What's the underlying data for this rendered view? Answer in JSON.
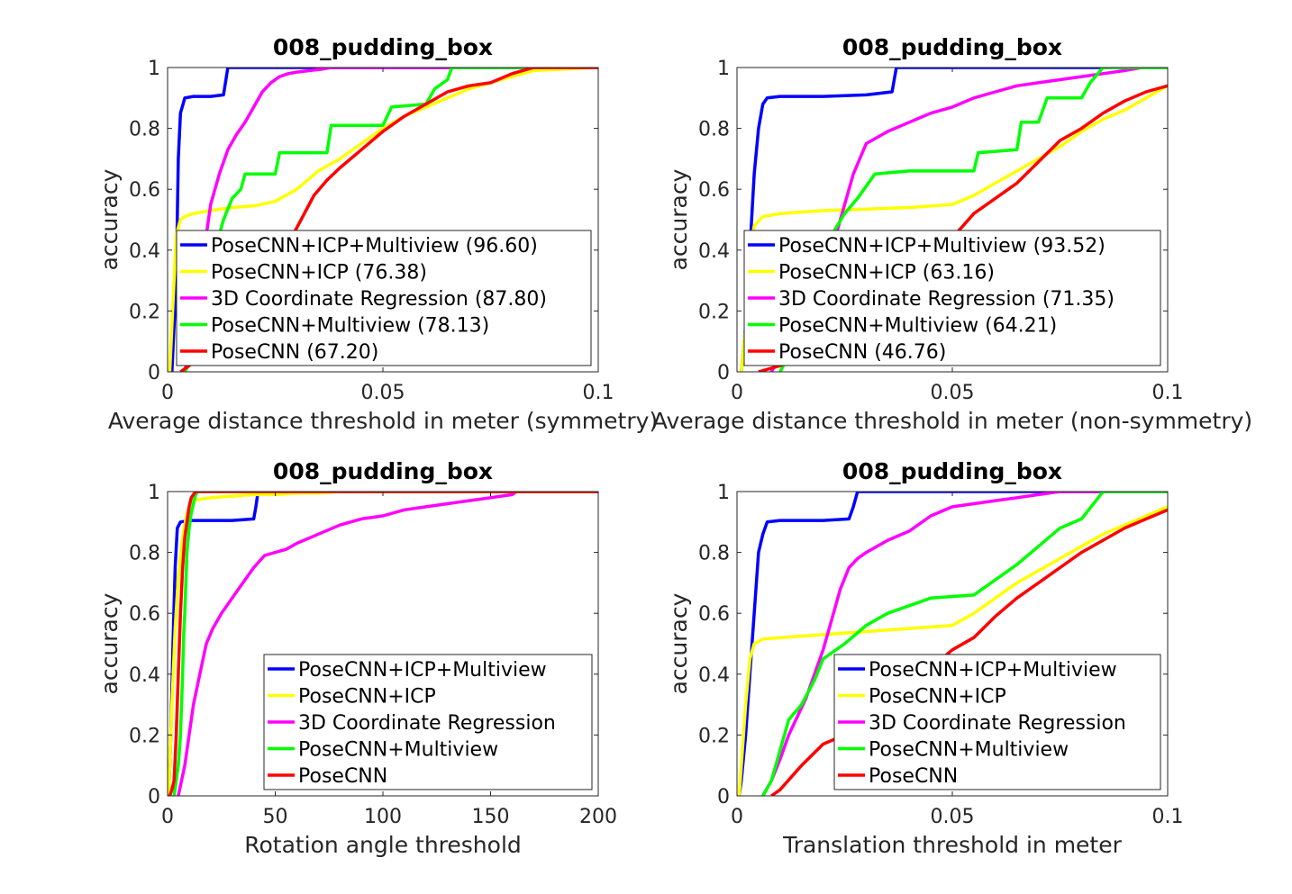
{
  "colors": {
    "PoseCNN+ICP+Multiview": "#0000ff",
    "PoseCNN+ICP": "#ffff00",
    "3D Coordinate Regression": "#ff00ff",
    "PoseCNN+Multiview": "#00ff00",
    "PoseCNN": "#ff0000"
  },
  "chart_data": [
    {
      "type": "line",
      "title": "008_pudding_box",
      "xlabel": "Average distance threshold in meter (symmetry)",
      "ylabel": "accuracy",
      "xlim": [
        0,
        0.1
      ],
      "ylim": [
        0,
        1
      ],
      "xticks": [
        "0",
        "0.05",
        "0.1"
      ],
      "yticks": [
        "0",
        "0.2",
        "0.4",
        "0.6",
        "0.8",
        "1"
      ],
      "grid": false,
      "legend_position": "bottom",
      "series": [
        {
          "name": "PoseCNN+ICP+Multiview (96.60)",
          "key": "PoseCNN+ICP+Multiview",
          "x": [
            0.001,
            0.002,
            0.0025,
            0.003,
            0.004,
            0.006,
            0.01,
            0.013,
            0.014,
            0.1
          ],
          "y": [
            0.0,
            0.3,
            0.7,
            0.85,
            0.9,
            0.905,
            0.905,
            0.91,
            1.0,
            1.0
          ]
        },
        {
          "name": "PoseCNN+ICP (76.38)",
          "key": "PoseCNN+ICP",
          "x": [
            0.0005,
            0.001,
            0.002,
            0.003,
            0.004,
            0.006,
            0.01,
            0.015,
            0.02,
            0.025,
            0.03,
            0.035,
            0.04,
            0.045,
            0.05,
            0.055,
            0.06,
            0.065,
            0.07,
            0.075,
            0.08,
            0.085,
            0.1
          ],
          "y": [
            0.0,
            0.15,
            0.45,
            0.5,
            0.51,
            0.52,
            0.53,
            0.54,
            0.545,
            0.56,
            0.6,
            0.66,
            0.7,
            0.75,
            0.8,
            0.84,
            0.87,
            0.9,
            0.93,
            0.95,
            0.97,
            0.99,
            1.0
          ]
        },
        {
          "name": "3D Coordinate Regression (87.80)",
          "key": "3D Coordinate Regression",
          "x": [
            0.004,
            0.006,
            0.008,
            0.01,
            0.012,
            0.014,
            0.016,
            0.018,
            0.02,
            0.022,
            0.024,
            0.026,
            0.028,
            0.03,
            0.033,
            0.036,
            0.038,
            0.1
          ],
          "y": [
            0.0,
            0.15,
            0.35,
            0.55,
            0.65,
            0.73,
            0.78,
            0.82,
            0.87,
            0.92,
            0.95,
            0.97,
            0.98,
            0.985,
            0.99,
            0.995,
            1.0,
            1.0
          ]
        },
        {
          "name": "PoseCNN+Multiview (78.13)",
          "key": "PoseCNN+Multiview",
          "x": [
            0.004,
            0.006,
            0.008,
            0.011,
            0.013,
            0.015,
            0.017,
            0.018,
            0.025,
            0.026,
            0.037,
            0.038,
            0.05,
            0.052,
            0.06,
            0.062,
            0.065,
            0.066,
            0.1
          ],
          "y": [
            0.0,
            0.05,
            0.2,
            0.4,
            0.5,
            0.57,
            0.6,
            0.65,
            0.65,
            0.72,
            0.72,
            0.81,
            0.81,
            0.87,
            0.88,
            0.93,
            0.96,
            1.0,
            1.0
          ]
        },
        {
          "name": "PoseCNN (67.20)",
          "key": "PoseCNN",
          "x": [
            0.003,
            0.005,
            0.008,
            0.012,
            0.016,
            0.02,
            0.024,
            0.028,
            0.031,
            0.034,
            0.037,
            0.04,
            0.045,
            0.05,
            0.055,
            0.06,
            0.065,
            0.07,
            0.075,
            0.08,
            0.085,
            0.1
          ],
          "y": [
            0.0,
            0.02,
            0.06,
            0.12,
            0.2,
            0.28,
            0.35,
            0.42,
            0.5,
            0.58,
            0.63,
            0.67,
            0.73,
            0.79,
            0.84,
            0.88,
            0.92,
            0.94,
            0.95,
            0.98,
            1.0,
            1.0
          ]
        }
      ]
    },
    {
      "type": "line",
      "title": "008_pudding_box",
      "xlabel": "Average distance threshold in meter (non-symmetry)",
      "ylabel": "accuracy",
      "xlim": [
        0,
        0.1
      ],
      "ylim": [
        0,
        1
      ],
      "xticks": [
        "0",
        "0.05",
        "0.1"
      ],
      "yticks": [
        "0",
        "0.2",
        "0.4",
        "0.6",
        "0.8",
        "1"
      ],
      "grid": false,
      "legend_position": "bottom",
      "series": [
        {
          "name": "PoseCNN+ICP+Multiview (93.52)",
          "key": "PoseCNN+ICP+Multiview",
          "x": [
            0.001,
            0.002,
            0.003,
            0.004,
            0.005,
            0.006,
            0.007,
            0.01,
            0.02,
            0.03,
            0.036,
            0.037,
            0.1
          ],
          "y": [
            0.0,
            0.15,
            0.4,
            0.65,
            0.8,
            0.88,
            0.9,
            0.905,
            0.905,
            0.91,
            0.92,
            1.0,
            1.0
          ]
        },
        {
          "name": "PoseCNN+ICP (63.16)",
          "key": "PoseCNN+ICP",
          "x": [
            0.001,
            0.002,
            0.003,
            0.004,
            0.006,
            0.01,
            0.02,
            0.03,
            0.04,
            0.05,
            0.055,
            0.06,
            0.065,
            0.07,
            0.075,
            0.08,
            0.085,
            0.09,
            0.095,
            0.1
          ],
          "y": [
            0.0,
            0.15,
            0.4,
            0.48,
            0.51,
            0.52,
            0.53,
            0.535,
            0.54,
            0.55,
            0.58,
            0.62,
            0.66,
            0.7,
            0.74,
            0.79,
            0.83,
            0.86,
            0.9,
            0.94
          ]
        },
        {
          "name": "3D Coordinate Regression (71.35)",
          "key": "3D Coordinate Regression",
          "x": [
            0.008,
            0.012,
            0.016,
            0.02,
            0.023,
            0.025,
            0.027,
            0.03,
            0.035,
            0.04,
            0.045,
            0.05,
            0.055,
            0.06,
            0.065,
            0.07,
            0.075,
            0.08,
            0.085,
            0.09,
            0.094,
            0.1
          ],
          "y": [
            0.0,
            0.1,
            0.22,
            0.35,
            0.45,
            0.55,
            0.65,
            0.75,
            0.79,
            0.82,
            0.85,
            0.87,
            0.9,
            0.92,
            0.94,
            0.95,
            0.96,
            0.97,
            0.98,
            0.99,
            1.0,
            1.0
          ]
        },
        {
          "name": "PoseCNN+Multiview (64.21)",
          "key": "PoseCNN+Multiview",
          "x": [
            0.01,
            0.013,
            0.016,
            0.019,
            0.022,
            0.025,
            0.028,
            0.032,
            0.04,
            0.055,
            0.056,
            0.065,
            0.066,
            0.07,
            0.072,
            0.08,
            0.082,
            0.085,
            0.1
          ],
          "y": [
            0.0,
            0.08,
            0.2,
            0.35,
            0.45,
            0.52,
            0.57,
            0.65,
            0.66,
            0.66,
            0.72,
            0.73,
            0.82,
            0.82,
            0.9,
            0.9,
            0.95,
            1.0,
            1.0
          ]
        },
        {
          "name": "PoseCNN (46.76)",
          "key": "PoseCNN",
          "x": [
            0.005,
            0.01,
            0.015,
            0.02,
            0.025,
            0.03,
            0.035,
            0.04,
            0.045,
            0.05,
            0.055,
            0.06,
            0.065,
            0.07,
            0.075,
            0.08,
            0.085,
            0.09,
            0.095,
            0.1
          ],
          "y": [
            0.0,
            0.02,
            0.05,
            0.08,
            0.12,
            0.17,
            0.22,
            0.28,
            0.36,
            0.44,
            0.52,
            0.57,
            0.62,
            0.69,
            0.76,
            0.8,
            0.85,
            0.89,
            0.92,
            0.94
          ]
        }
      ]
    },
    {
      "type": "line",
      "title": "008_pudding_box",
      "xlabel": "Rotation angle threshold",
      "ylabel": "accuracy",
      "xlim": [
        0,
        200
      ],
      "ylim": [
        0,
        1
      ],
      "xticks": [
        "0",
        "50",
        "100",
        "150",
        "200"
      ],
      "yticks": [
        "0",
        "0.2",
        "0.4",
        "0.6",
        "0.8",
        "1"
      ],
      "grid": false,
      "legend_position": "bottom-right",
      "series": [
        {
          "name": "PoseCNN+ICP+Multiview",
          "key": "PoseCNN+ICP+Multiview",
          "x": [
            0.5,
            1.5,
            2.5,
            3.5,
            4.5,
            6,
            10,
            20,
            30,
            40,
            41,
            42,
            200
          ],
          "y": [
            0.0,
            0.2,
            0.5,
            0.75,
            0.88,
            0.9,
            0.905,
            0.905,
            0.905,
            0.91,
            0.95,
            1.0,
            1.0
          ]
        },
        {
          "name": "PoseCNN+ICP",
          "key": "PoseCNN+ICP",
          "x": [
            0.5,
            2,
            3.5,
            5,
            7,
            9,
            12,
            15,
            20,
            30,
            40,
            50,
            60,
            70,
            80,
            82,
            200
          ],
          "y": [
            0.0,
            0.3,
            0.55,
            0.72,
            0.85,
            0.93,
            0.97,
            0.975,
            0.98,
            0.985,
            0.99,
            0.99,
            0.995,
            0.995,
            1.0,
            1.0,
            1.0
          ]
        },
        {
          "name": "3D Coordinate Regression",
          "key": "3D Coordinate Regression",
          "x": [
            5,
            8,
            10,
            12,
            15,
            18,
            21,
            25,
            30,
            35,
            40,
            45,
            50,
            55,
            60,
            70,
            80,
            90,
            100,
            110,
            120,
            130,
            140,
            150,
            160,
            162,
            200
          ],
          "y": [
            0.0,
            0.1,
            0.2,
            0.3,
            0.4,
            0.5,
            0.55,
            0.6,
            0.65,
            0.7,
            0.75,
            0.79,
            0.8,
            0.81,
            0.83,
            0.86,
            0.89,
            0.91,
            0.92,
            0.94,
            0.95,
            0.96,
            0.97,
            0.98,
            0.99,
            1.0,
            1.0
          ]
        },
        {
          "name": "PoseCNN+Multiview",
          "key": "PoseCNN+Multiview",
          "x": [
            3,
            4,
            5,
            6,
            7,
            7.5,
            8,
            8.5,
            9,
            10,
            11,
            12,
            13,
            14,
            200
          ],
          "y": [
            0.0,
            0.05,
            0.1,
            0.2,
            0.4,
            0.53,
            0.6,
            0.7,
            0.8,
            0.88,
            0.93,
            0.96,
            0.99,
            1.0,
            1.0
          ]
        },
        {
          "name": "PoseCNN",
          "key": "PoseCNN",
          "x": [
            1,
            2,
            3,
            4,
            5,
            6,
            7,
            8,
            9,
            10,
            11,
            12,
            13,
            200
          ],
          "y": [
            0.0,
            0.02,
            0.05,
            0.2,
            0.4,
            0.6,
            0.75,
            0.85,
            0.9,
            0.95,
            0.98,
            0.99,
            1.0,
            1.0
          ]
        }
      ]
    },
    {
      "type": "line",
      "title": "008_pudding_box",
      "xlabel": "Translation threshold in meter",
      "ylabel": "accuracy",
      "xlim": [
        0,
        0.1
      ],
      "ylim": [
        0,
        1
      ],
      "xticks": [
        "0",
        "0.05",
        "0.1"
      ],
      "yticks": [
        "0",
        "0.2",
        "0.4",
        "0.6",
        "0.8",
        "1"
      ],
      "grid": false,
      "legend_position": "bottom-right",
      "series": [
        {
          "name": "PoseCNN+ICP+Multiview",
          "key": "PoseCNN+ICP+Multiview",
          "x": [
            0.0005,
            0.001,
            0.002,
            0.003,
            0.004,
            0.005,
            0.006,
            0.007,
            0.01,
            0.02,
            0.026,
            0.027,
            0.028,
            0.1
          ],
          "y": [
            0.0,
            0.05,
            0.2,
            0.4,
            0.6,
            0.8,
            0.86,
            0.9,
            0.905,
            0.905,
            0.91,
            0.95,
            1.0,
            1.0
          ]
        },
        {
          "name": "PoseCNN+ICP",
          "key": "PoseCNN+ICP",
          "x": [
            0.0005,
            0.001,
            0.002,
            0.003,
            0.004,
            0.006,
            0.01,
            0.02,
            0.03,
            0.04,
            0.05,
            0.055,
            0.06,
            0.065,
            0.07,
            0.075,
            0.08,
            0.085,
            0.09,
            0.095,
            0.1
          ],
          "y": [
            0.0,
            0.1,
            0.3,
            0.45,
            0.5,
            0.515,
            0.52,
            0.53,
            0.54,
            0.55,
            0.56,
            0.6,
            0.65,
            0.7,
            0.74,
            0.78,
            0.82,
            0.86,
            0.89,
            0.92,
            0.95
          ]
        },
        {
          "name": "3D Coordinate Regression",
          "key": "3D Coordinate Regression",
          "x": [
            0.006,
            0.008,
            0.01,
            0.012,
            0.014,
            0.016,
            0.018,
            0.02,
            0.022,
            0.024,
            0.026,
            0.028,
            0.03,
            0.035,
            0.04,
            0.045,
            0.05,
            0.055,
            0.06,
            0.065,
            0.07,
            0.075,
            0.1
          ],
          "y": [
            0.0,
            0.05,
            0.12,
            0.2,
            0.26,
            0.32,
            0.4,
            0.48,
            0.58,
            0.68,
            0.75,
            0.78,
            0.8,
            0.84,
            0.87,
            0.92,
            0.95,
            0.96,
            0.97,
            0.98,
            0.99,
            1.0,
            1.0
          ]
        },
        {
          "name": "PoseCNN+Multiview",
          "key": "PoseCNN+Multiview",
          "x": [
            0.006,
            0.008,
            0.01,
            0.012,
            0.015,
            0.018,
            0.02,
            0.022,
            0.025,
            0.03,
            0.035,
            0.045,
            0.055,
            0.065,
            0.07,
            0.075,
            0.08,
            0.085,
            0.1
          ],
          "y": [
            0.0,
            0.05,
            0.15,
            0.25,
            0.3,
            0.38,
            0.45,
            0.47,
            0.5,
            0.56,
            0.6,
            0.65,
            0.66,
            0.76,
            0.82,
            0.88,
            0.91,
            1.0,
            1.0
          ]
        },
        {
          "name": "PoseCNN",
          "key": "PoseCNN",
          "x": [
            0.008,
            0.01,
            0.015,
            0.02,
            0.025,
            0.03,
            0.035,
            0.04,
            0.045,
            0.05,
            0.055,
            0.06,
            0.065,
            0.07,
            0.075,
            0.08,
            0.085,
            0.09,
            0.095,
            0.1
          ],
          "y": [
            0.0,
            0.02,
            0.1,
            0.17,
            0.2,
            0.24,
            0.28,
            0.35,
            0.42,
            0.48,
            0.52,
            0.59,
            0.65,
            0.7,
            0.75,
            0.8,
            0.84,
            0.88,
            0.91,
            0.94
          ]
        }
      ]
    }
  ]
}
